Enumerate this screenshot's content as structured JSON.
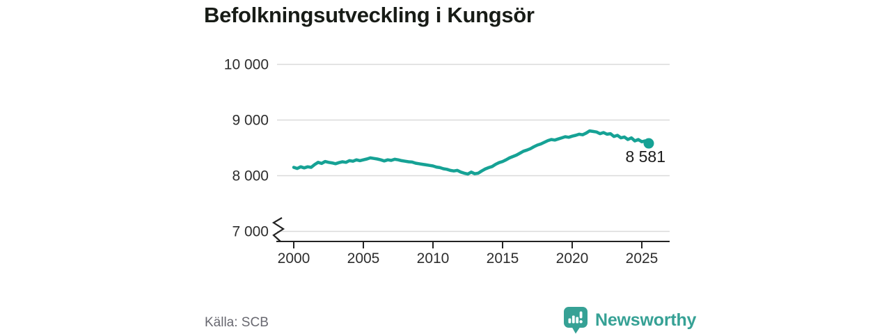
{
  "title": "Befolkningsutveckling i Kungsör",
  "source": "Källa: SCB",
  "brand": {
    "name": "Newsworthy"
  },
  "colors": {
    "line": "#16a295",
    "grid": "#d9d9d9",
    "axis": "#222222",
    "tick_text": "#2d2d2d",
    "label_text": "#1a1a1a",
    "muted_text": "#686870",
    "brand_teal": "#36a195"
  },
  "chart_data": {
    "type": "line",
    "title": "Befolkningsutveckling i Kungsör",
    "xlabel": "",
    "ylabel": "",
    "grid": "horizontal",
    "y_axis_break": true,
    "ylim_display": [
      7000,
      10000
    ],
    "xlim": [
      2000,
      2027
    ],
    "x_ticks": [
      {
        "value": 2000,
        "label": "2000"
      },
      {
        "value": 2005,
        "label": "2005"
      },
      {
        "value": 2010,
        "label": "2010"
      },
      {
        "value": 2015,
        "label": "2015"
      },
      {
        "value": 2020,
        "label": "2020"
      },
      {
        "value": 2025,
        "label": "2025"
      }
    ],
    "y_ticks": [
      {
        "value": 10000,
        "label": "10 000"
      },
      {
        "value": 9000,
        "label": "9 000"
      },
      {
        "value": 8000,
        "label": "8 000"
      },
      {
        "value": 7000,
        "label": "7 000"
      }
    ],
    "end_point": {
      "x": 2025.5,
      "value": 8581,
      "label": "8 581"
    },
    "series": [
      {
        "name": "Befolkning",
        "points": [
          [
            2000.0,
            8150
          ],
          [
            2000.25,
            8130
          ],
          [
            2000.5,
            8160
          ],
          [
            2000.75,
            8140
          ],
          [
            2001.0,
            8160
          ],
          [
            2001.25,
            8150
          ],
          [
            2001.5,
            8200
          ],
          [
            2001.75,
            8240
          ],
          [
            2002.0,
            8220
          ],
          [
            2002.25,
            8255
          ],
          [
            2002.5,
            8240
          ],
          [
            2002.75,
            8230
          ],
          [
            2003.0,
            8215
          ],
          [
            2003.25,
            8235
          ],
          [
            2003.5,
            8250
          ],
          [
            2003.75,
            8240
          ],
          [
            2004.0,
            8270
          ],
          [
            2004.25,
            8260
          ],
          [
            2004.5,
            8285
          ],
          [
            2004.75,
            8270
          ],
          [
            2005.0,
            8285
          ],
          [
            2005.25,
            8300
          ],
          [
            2005.5,
            8320
          ],
          [
            2005.75,
            8310
          ],
          [
            2006.0,
            8300
          ],
          [
            2006.25,
            8285
          ],
          [
            2006.5,
            8265
          ],
          [
            2006.75,
            8285
          ],
          [
            2007.0,
            8275
          ],
          [
            2007.25,
            8295
          ],
          [
            2007.5,
            8285
          ],
          [
            2007.75,
            8270
          ],
          [
            2008.0,
            8260
          ],
          [
            2008.25,
            8250
          ],
          [
            2008.5,
            8245
          ],
          [
            2008.75,
            8225
          ],
          [
            2009.0,
            8215
          ],
          [
            2009.25,
            8205
          ],
          [
            2009.5,
            8195
          ],
          [
            2009.75,
            8185
          ],
          [
            2010.0,
            8175
          ],
          [
            2010.25,
            8155
          ],
          [
            2010.5,
            8145
          ],
          [
            2010.75,
            8125
          ],
          [
            2011.0,
            8115
          ],
          [
            2011.25,
            8095
          ],
          [
            2011.5,
            8085
          ],
          [
            2011.75,
            8095
          ],
          [
            2012.0,
            8065
          ],
          [
            2012.25,
            8045
          ],
          [
            2012.5,
            8030
          ],
          [
            2012.75,
            8065
          ],
          [
            2013.0,
            8035
          ],
          [
            2013.25,
            8045
          ],
          [
            2013.5,
            8085
          ],
          [
            2013.75,
            8120
          ],
          [
            2014.0,
            8145
          ],
          [
            2014.25,
            8165
          ],
          [
            2014.5,
            8205
          ],
          [
            2014.75,
            8235
          ],
          [
            2015.0,
            8255
          ],
          [
            2015.25,
            8285
          ],
          [
            2015.5,
            8320
          ],
          [
            2015.75,
            8345
          ],
          [
            2016.0,
            8370
          ],
          [
            2016.25,
            8405
          ],
          [
            2016.5,
            8440
          ],
          [
            2016.75,
            8460
          ],
          [
            2017.0,
            8485
          ],
          [
            2017.25,
            8520
          ],
          [
            2017.5,
            8550
          ],
          [
            2017.75,
            8570
          ],
          [
            2018.0,
            8600
          ],
          [
            2018.25,
            8630
          ],
          [
            2018.5,
            8650
          ],
          [
            2018.75,
            8640
          ],
          [
            2019.0,
            8660
          ],
          [
            2019.25,
            8680
          ],
          [
            2019.5,
            8700
          ],
          [
            2019.75,
            8690
          ],
          [
            2020.0,
            8710
          ],
          [
            2020.25,
            8725
          ],
          [
            2020.5,
            8745
          ],
          [
            2020.75,
            8735
          ],
          [
            2021.0,
            8765
          ],
          [
            2021.25,
            8805
          ],
          [
            2021.5,
            8795
          ],
          [
            2021.75,
            8785
          ],
          [
            2022.0,
            8755
          ],
          [
            2022.25,
            8775
          ],
          [
            2022.5,
            8745
          ],
          [
            2022.75,
            8755
          ],
          [
            2023.0,
            8705
          ],
          [
            2023.25,
            8725
          ],
          [
            2023.5,
            8680
          ],
          [
            2023.75,
            8695
          ],
          [
            2024.0,
            8650
          ],
          [
            2024.25,
            8680
          ],
          [
            2024.5,
            8625
          ],
          [
            2024.75,
            8650
          ],
          [
            2025.0,
            8610
          ],
          [
            2025.25,
            8625
          ],
          [
            2025.5,
            8581
          ]
        ]
      }
    ]
  }
}
